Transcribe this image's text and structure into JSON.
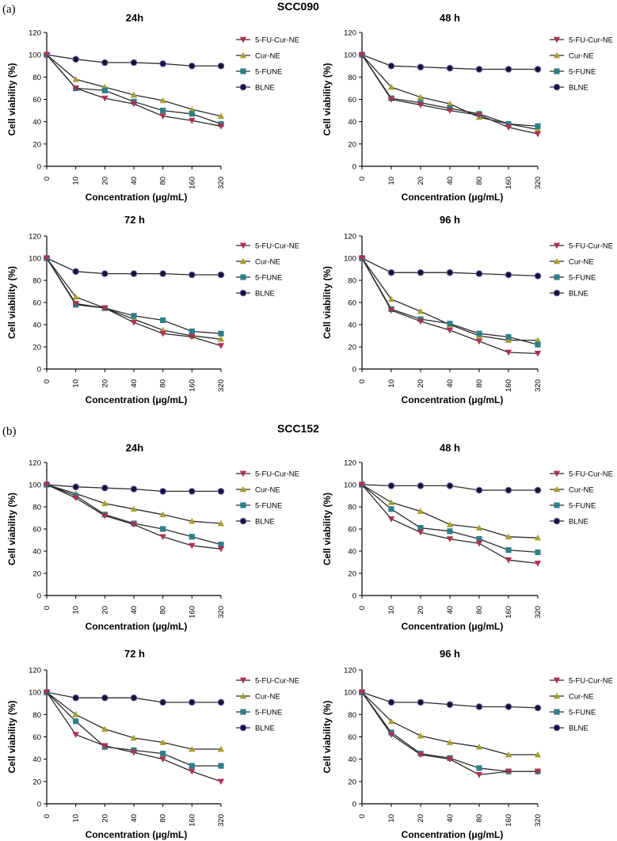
{
  "panels": [
    {
      "label": "(a)",
      "title": "SCC090"
    },
    {
      "label": "(b)",
      "title": "SCC152"
    }
  ],
  "series_style": [
    {
      "name": "5-FU-Cur-NE",
      "color": "#b03050",
      "marker": "triangle-down"
    },
    {
      "name": "Cur-NE",
      "color": "#a8a030",
      "marker": "triangle-up"
    },
    {
      "name": "5-FUNE",
      "color": "#2f7f88",
      "marker": "square"
    },
    {
      "name": "BLNE",
      "color": "#6f62c8",
      "marker": "circle"
    }
  ],
  "chart_data": [
    {
      "type": "line",
      "panel": "SCC090",
      "title": "24h",
      "xlabel": "Concentration (μg/mL)",
      "ylabel": "Cell viability (%)",
      "categories": [
        "0",
        "10",
        "20",
        "40",
        "80",
        "160",
        "320"
      ],
      "ylim": [
        0,
        120
      ],
      "yticks": [
        "0",
        "20",
        "40",
        "60",
        "80",
        "100",
        "120"
      ],
      "series": [
        {
          "name": "5-FU-Cur-NE",
          "values": [
            100,
            70,
            61,
            56,
            45,
            41,
            36
          ]
        },
        {
          "name": "Cur-NE",
          "values": [
            100,
            78,
            71,
            64,
            59,
            51,
            45
          ]
        },
        {
          "name": "5-FUNE",
          "values": [
            100,
            70,
            68,
            58,
            50,
            47,
            38
          ]
        },
        {
          "name": "BLNE",
          "values": [
            100,
            96,
            93,
            93,
            92,
            90,
            90
          ]
        }
      ]
    },
    {
      "type": "line",
      "panel": "SCC090",
      "title": "48 h",
      "xlabel": "Concentration (μg/mL)",
      "ylabel": "Cell viability (%)",
      "categories": [
        "0",
        "10",
        "20",
        "40",
        "80",
        "160",
        "320"
      ],
      "ylim": [
        0,
        120
      ],
      "yticks": [
        "0",
        "20",
        "40",
        "60",
        "80",
        "100",
        "120"
      ],
      "series": [
        {
          "name": "5-FU-Cur-NE",
          "values": [
            100,
            60,
            55,
            50,
            46,
            35,
            29
          ]
        },
        {
          "name": "Cur-NE",
          "values": [
            100,
            71,
            62,
            56,
            44,
            38,
            33
          ]
        },
        {
          "name": "5-FUNE",
          "values": [
            100,
            61,
            57,
            52,
            47,
            38,
            36
          ]
        },
        {
          "name": "BLNE",
          "values": [
            100,
            90,
            89,
            88,
            87,
            87,
            87
          ]
        }
      ]
    },
    {
      "type": "line",
      "panel": "SCC090",
      "title": "72 h",
      "xlabel": "Concentration (μg/mL)",
      "ylabel": "Cell viability (%)",
      "categories": [
        "0",
        "10",
        "20",
        "40",
        "80",
        "160",
        "320"
      ],
      "ylim": [
        0,
        120
      ],
      "yticks": [
        "0",
        "20",
        "40",
        "60",
        "80",
        "100",
        "120"
      ],
      "series": [
        {
          "name": "5-FU-Cur-NE",
          "values": [
            100,
            59,
            55,
            42,
            32,
            29,
            21
          ]
        },
        {
          "name": "Cur-NE",
          "values": [
            100,
            65,
            55,
            45,
            35,
            30,
            27
          ]
        },
        {
          "name": "5-FUNE",
          "values": [
            100,
            58,
            55,
            48,
            44,
            34,
            32
          ]
        },
        {
          "name": "BLNE",
          "values": [
            100,
            88,
            86,
            86,
            86,
            85,
            85
          ]
        }
      ]
    },
    {
      "type": "line",
      "panel": "SCC090",
      "title": "96 h",
      "xlabel": "Concentration (μg/mL)",
      "ylabel": "Cell viability (%)",
      "categories": [
        "0",
        "10",
        "20",
        "40",
        "80",
        "160",
        "320"
      ],
      "ylim": [
        0,
        120
      ],
      "yticks": [
        "0",
        "20",
        "40",
        "60",
        "80",
        "100",
        "120"
      ],
      "series": [
        {
          "name": "5-FU-Cur-NE",
          "values": [
            100,
            53,
            43,
            35,
            25,
            15,
            14
          ]
        },
        {
          "name": "Cur-NE",
          "values": [
            100,
            63,
            52,
            40,
            30,
            26,
            26
          ]
        },
        {
          "name": "5-FUNE",
          "values": [
            100,
            54,
            45,
            41,
            32,
            29,
            22
          ]
        },
        {
          "name": "BLNE",
          "values": [
            100,
            87,
            87,
            87,
            86,
            85,
            84
          ]
        }
      ]
    },
    {
      "type": "line",
      "panel": "SCC152",
      "title": "24h",
      "xlabel": "Concentration (μg/mL)",
      "ylabel": "Cell viability (%)",
      "categories": [
        "0",
        "10",
        "20",
        "40",
        "80",
        "160",
        "320"
      ],
      "ylim": [
        0,
        120
      ],
      "yticks": [
        "0",
        "20",
        "40",
        "60",
        "80",
        "100",
        "120"
      ],
      "series": [
        {
          "name": "5-FU-Cur-NE",
          "values": [
            100,
            88,
            72,
            64,
            53,
            45,
            42
          ]
        },
        {
          "name": "Cur-NE",
          "values": [
            100,
            92,
            83,
            78,
            73,
            67,
            65
          ]
        },
        {
          "name": "5-FUNE",
          "values": [
            100,
            90,
            73,
            65,
            60,
            53,
            46
          ]
        },
        {
          "name": "BLNE",
          "values": [
            100,
            98,
            97,
            96,
            94,
            94,
            94
          ]
        }
      ]
    },
    {
      "type": "line",
      "panel": "SCC152",
      "title": "48 h",
      "xlabel": "Concentration (μg/mL)",
      "ylabel": "Cell viability (%)",
      "categories": [
        "0",
        "10",
        "20",
        "40",
        "80",
        "160",
        "320"
      ],
      "ylim": [
        0,
        120
      ],
      "yticks": [
        "0",
        "20",
        "40",
        "60",
        "80",
        "100",
        "120"
      ],
      "series": [
        {
          "name": "5-FU-Cur-NE",
          "values": [
            100,
            69,
            57,
            51,
            47,
            32,
            29
          ]
        },
        {
          "name": "Cur-NE",
          "values": [
            100,
            84,
            76,
            64,
            61,
            53,
            52
          ]
        },
        {
          "name": "5-FUNE",
          "values": [
            100,
            78,
            61,
            58,
            51,
            41,
            39
          ]
        },
        {
          "name": "BLNE",
          "values": [
            100,
            99,
            99,
            99,
            95,
            95,
            95
          ]
        }
      ]
    },
    {
      "type": "line",
      "panel": "SCC152",
      "title": "72 h",
      "xlabel": "Concentration (μg/mL)",
      "ylabel": "Cell viability (%)",
      "categories": [
        "0",
        "10",
        "20",
        "40",
        "80",
        "160",
        "320"
      ],
      "ylim": [
        0,
        120
      ],
      "yticks": [
        "0",
        "20",
        "40",
        "60",
        "80",
        "100",
        "120"
      ],
      "series": [
        {
          "name": "5-FU-Cur-NE",
          "values": [
            100,
            62,
            52,
            46,
            40,
            29,
            20
          ]
        },
        {
          "name": "Cur-NE",
          "values": [
            100,
            80,
            67,
            59,
            55,
            49,
            49
          ]
        },
        {
          "name": "5-FUNE",
          "values": [
            100,
            74,
            51,
            48,
            45,
            34,
            34
          ]
        },
        {
          "name": "BLNE",
          "values": [
            100,
            95,
            95,
            95,
            91,
            91,
            91
          ]
        }
      ]
    },
    {
      "type": "line",
      "panel": "SCC152",
      "title": "96 h",
      "xlabel": "Concentration (μg/mL)",
      "ylabel": "Cell viability (%)",
      "categories": [
        "0",
        "10",
        "20",
        "40",
        "80",
        "160",
        "320"
      ],
      "ylim": [
        0,
        120
      ],
      "yticks": [
        "0",
        "20",
        "40",
        "60",
        "80",
        "100",
        "120"
      ],
      "series": [
        {
          "name": "5-FU-Cur-NE",
          "values": [
            100,
            62,
            44,
            40,
            26,
            29,
            29
          ]
        },
        {
          "name": "Cur-NE",
          "values": [
            100,
            74,
            61,
            55,
            51,
            44,
            44
          ]
        },
        {
          "name": "5-FUNE",
          "values": [
            100,
            64,
            45,
            41,
            32,
            29,
            29
          ]
        },
        {
          "name": "BLNE",
          "values": [
            100,
            91,
            91,
            89,
            87,
            87,
            86
          ]
        }
      ]
    }
  ]
}
